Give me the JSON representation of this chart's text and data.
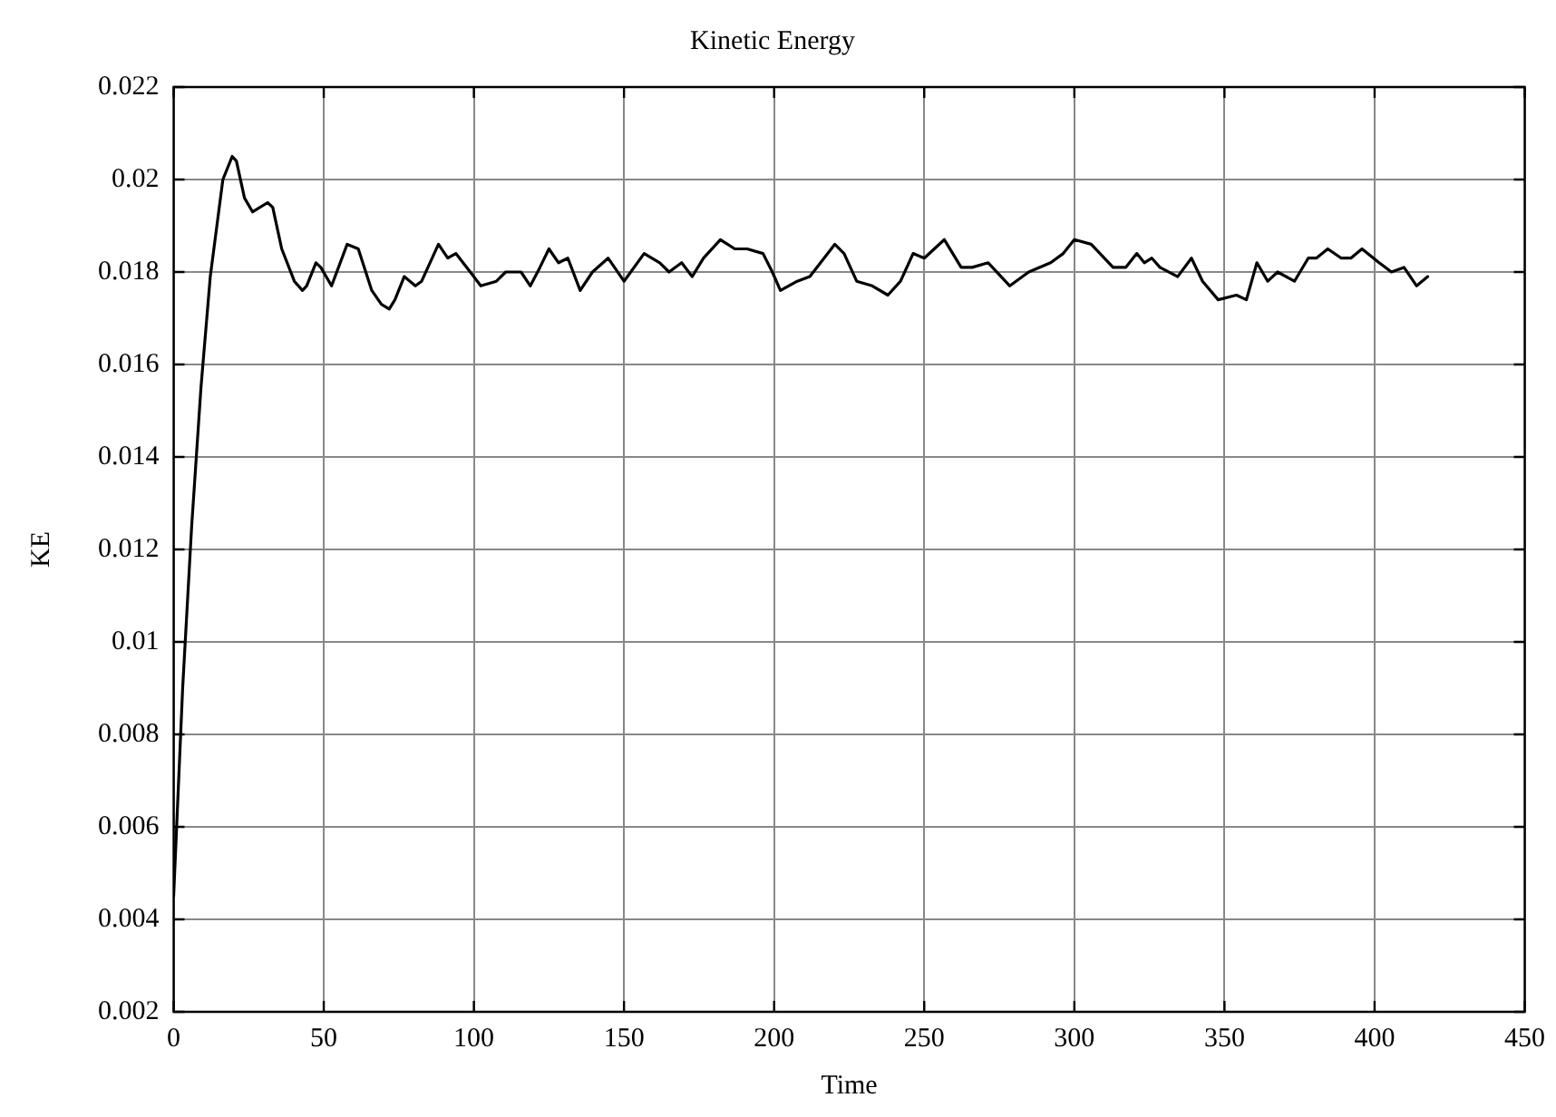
{
  "chart_data": {
    "type": "line",
    "title": "Kinetic Energy",
    "xlabel": "Time",
    "ylabel": "KE",
    "xlim": [
      0,
      450
    ],
    "xticks": [
      0,
      50,
      100,
      150,
      200,
      250,
      300,
      350,
      400,
      450
    ],
    "ylim": [
      0.002,
      0.022
    ],
    "yticks": [
      0.002,
      0.004,
      0.006,
      0.008,
      0.01,
      0.012,
      0.014,
      0.016,
      0.018,
      0.02,
      0.022
    ],
    "grid": true,
    "legend": false,
    "marker": "none",
    "line_style": "solid",
    "series": [
      {
        "color": "#000000",
        "x": [
          0,
          3,
          6,
          9.1,
          12.2,
          16.4,
          19.5,
          20.9,
          23.6,
          26.3,
          31.3,
          33,
          36,
          40.2,
          42.9,
          44.3,
          47.4,
          49,
          52.6,
          57.8,
          61.5,
          66,
          69.2,
          71.8,
          73.7,
          76.8,
          80.5,
          82.6,
          88.2,
          91.3,
          94,
          98.8,
          102.3,
          107.5,
          110.6,
          115.7,
          118.8,
          122,
          125,
          128.2,
          131.3,
          135.4,
          139.5,
          144.7,
          150,
          156.7,
          161.9,
          165,
          169.2,
          172.7,
          176.5,
          182.1,
          186.9,
          191,
          196.3,
          199.4,
          202.1,
          207.7,
          211.9,
          220.2,
          223.3,
          227.5,
          232.7,
          237.9,
          242.1,
          246.3,
          250,
          256.7,
          262.3,
          266,
          271.3,
          278.5,
          284.8,
          292.1,
          296.3,
          300,
          305.6,
          312.9,
          317.1,
          320.8,
          323.3,
          325.8,
          328.5,
          334.4,
          339,
          342.7,
          347.9,
          354,
          357.3,
          360.8,
          364.4,
          367.7,
          373.3,
          377.9,
          380.6,
          384.4,
          388.9,
          392.1,
          395.8,
          401.5,
          405.6,
          409.8,
          414,
          417.7
        ],
        "values": [
          0.0045,
          0.009,
          0.0125,
          0.0155,
          0.0179,
          0.02,
          0.0205,
          0.0204,
          0.0196,
          0.0193,
          0.0195,
          0.0194,
          0.0185,
          0.0178,
          0.0176,
          0.0177,
          0.0182,
          0.0181,
          0.0177,
          0.0186,
          0.0185,
          0.0176,
          0.0173,
          0.0172,
          0.0174,
          0.0179,
          0.0177,
          0.0178,
          0.0186,
          0.0183,
          0.0184,
          0.018,
          0.0177,
          0.0178,
          0.018,
          0.018,
          0.0177,
          0.0181,
          0.0185,
          0.0182,
          0.0183,
          0.0176,
          0.018,
          0.0183,
          0.0178,
          0.0184,
          0.0182,
          0.018,
          0.0182,
          0.0179,
          0.0183,
          0.0187,
          0.0185,
          0.0185,
          0.0184,
          0.018,
          0.0176,
          0.0178,
          0.0179,
          0.0186,
          0.0184,
          0.0178,
          0.0177,
          0.0175,
          0.0178,
          0.0184,
          0.0183,
          0.0187,
          0.0181,
          0.0181,
          0.0182,
          0.0177,
          0.018,
          0.0182,
          0.0184,
          0.0187,
          0.0186,
          0.0181,
          0.0181,
          0.0184,
          0.0182,
          0.0183,
          0.0181,
          0.0179,
          0.0183,
          0.0178,
          0.0174,
          0.0175,
          0.0174,
          0.0182,
          0.0178,
          0.018,
          0.0178,
          0.0183,
          0.0183,
          0.0185,
          0.0183,
          0.0183,
          0.0185,
          0.0182,
          0.018,
          0.0181,
          0.0177,
          0.0179
        ]
      }
    ]
  }
}
